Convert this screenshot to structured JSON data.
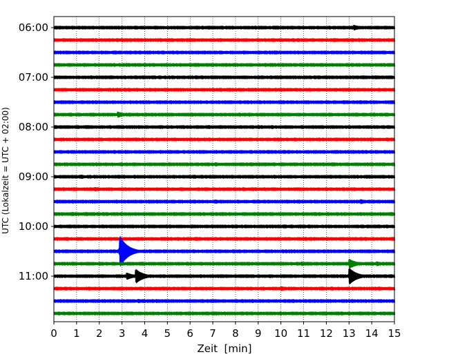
{
  "chart_data": {
    "type": "line",
    "title": "",
    "xlabel": "Zeit  [min]",
    "ylabel": "UTC (Lokalzeit = UTC + 02:00)",
    "xlim": [
      0,
      15
    ],
    "x_ticks": [
      0,
      1,
      2,
      3,
      4,
      5,
      6,
      7,
      8,
      9,
      10,
      11,
      12,
      13,
      14,
      15
    ],
    "x_tick_labels": [
      "0",
      "1",
      "2",
      "3",
      "4",
      "5",
      "6",
      "7",
      "8",
      "9",
      "10",
      "11",
      "12",
      "13",
      "14",
      "15"
    ],
    "grid": "vertical dotted lines at each minute",
    "trace_interval_minutes": 15,
    "trace_colors": [
      "#000000",
      "#ff0000",
      "#0000ff",
      "#008000"
    ],
    "y_tick_labels": [
      "06:00",
      "07:00",
      "08:00",
      "09:00",
      "10:00",
      "11:00"
    ],
    "traces": [
      {
        "start": "06:00",
        "color": "#000000",
        "events": [
          {
            "minute": 13.2,
            "amplitude": 0.45
          }
        ]
      },
      {
        "start": "06:15",
        "color": "#ff0000",
        "events": []
      },
      {
        "start": "06:30",
        "color": "#0000ff",
        "events": []
      },
      {
        "start": "06:45",
        "color": "#008000",
        "events": [
          {
            "minute": 11.8,
            "amplitude": 0.2
          }
        ]
      },
      {
        "start": "07:00",
        "color": "#000000",
        "events": []
      },
      {
        "start": "07:15",
        "color": "#ff0000",
        "events": []
      },
      {
        "start": "07:30",
        "color": "#0000ff",
        "events": [
          {
            "minute": 12.5,
            "amplitude": 0.2
          }
        ]
      },
      {
        "start": "07:45",
        "color": "#008000",
        "events": [
          {
            "minute": 2.8,
            "amplitude": 0.5
          }
        ]
      },
      {
        "start": "08:00",
        "color": "#000000",
        "events": []
      },
      {
        "start": "08:15",
        "color": "#ff0000",
        "events": [
          {
            "minute": 1.5,
            "amplitude": 0.25
          }
        ]
      },
      {
        "start": "08:30",
        "color": "#0000ff",
        "events": [
          {
            "minute": 1.6,
            "amplitude": 0.25
          },
          {
            "minute": 3.0,
            "amplitude": 0.2
          }
        ]
      },
      {
        "start": "08:45",
        "color": "#008000",
        "events": [
          {
            "minute": 7.1,
            "amplitude": 0.35
          },
          {
            "minute": 14.0,
            "amplitude": 0.2
          }
        ]
      },
      {
        "start": "09:00",
        "color": "#000000",
        "events": [
          {
            "minute": 1.2,
            "amplitude": 0.35
          }
        ]
      },
      {
        "start": "09:15",
        "color": "#ff0000",
        "events": [
          {
            "minute": 1.8,
            "amplitude": 0.35
          }
        ]
      },
      {
        "start": "09:30",
        "color": "#0000ff",
        "events": [
          {
            "minute": 4.3,
            "amplitude": 0.3
          },
          {
            "minute": 7.1,
            "amplitude": 0.35
          },
          {
            "minute": 13.5,
            "amplitude": 0.4
          }
        ]
      },
      {
        "start": "09:45",
        "color": "#008000",
        "events": [
          {
            "minute": 1.4,
            "amplitude": 0.3
          }
        ]
      },
      {
        "start": "10:00",
        "color": "#000000",
        "events": []
      },
      {
        "start": "10:15",
        "color": "#ff0000",
        "events": [
          {
            "minute": 14.5,
            "amplitude": 0.3
          }
        ]
      },
      {
        "start": "10:30",
        "color": "#0000ff",
        "events": [
          {
            "minute": 2.9,
            "amplitude": 2.6
          },
          {
            "minute": 5.7,
            "amplitude": 0.3
          }
        ]
      },
      {
        "start": "10:45",
        "color": "#008000",
        "events": [
          {
            "minute": 2.3,
            "amplitude": 0.3
          },
          {
            "minute": 10.9,
            "amplitude": 0.35
          },
          {
            "minute": 13.0,
            "amplitude": 0.8
          },
          {
            "minute": 14.2,
            "amplitude": 0.4
          }
        ]
      },
      {
        "start": "11:00",
        "color": "#000000",
        "events": [
          {
            "minute": 3.2,
            "amplitude": 0.6
          },
          {
            "minute": 3.6,
            "amplitude": 1.2
          },
          {
            "minute": 13.0,
            "amplitude": 1.4
          }
        ]
      },
      {
        "start": "11:15",
        "color": "#ff0000",
        "events": [
          {
            "minute": 10.0,
            "amplitude": 0.4
          }
        ]
      },
      {
        "start": "11:30",
        "color": "#0000ff",
        "events": [
          {
            "minute": 3.7,
            "amplitude": 0.35
          }
        ]
      },
      {
        "start": "11:45",
        "color": "#008000",
        "events": [
          {
            "minute": 1.6,
            "amplitude": 0.25
          }
        ]
      }
    ]
  }
}
